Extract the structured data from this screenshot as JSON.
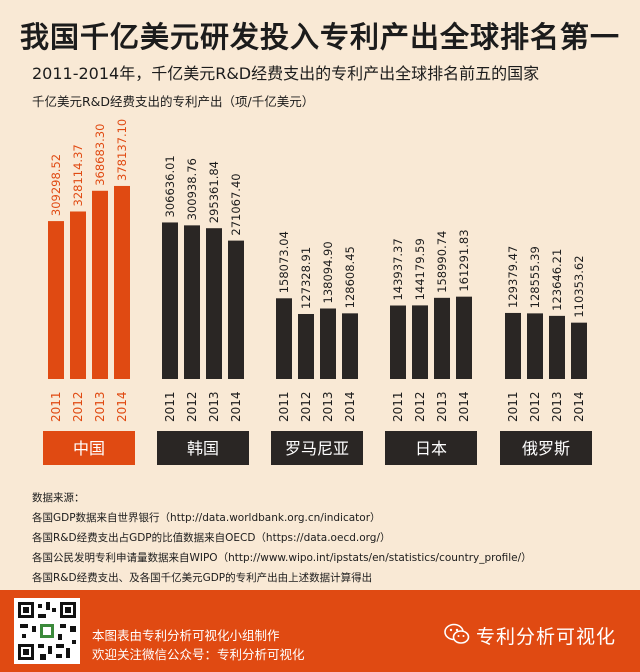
{
  "title": "我国千亿美元研发投入专利产出全球排名第一",
  "subtitle": "2011-2014年，千亿美元R&D经费支出的专利产出全球排名前五的国家",
  "unit_label": "千亿美元R&D经费支出的专利产出（项/千亿美元）",
  "chart_data": {
    "type": "bar",
    "title": "我国千亿美元研发投入专利产出全球排名第一",
    "subtitle": "2011-2014年，千亿美元R&D经费支出的专利产出全球排名前五的国家",
    "ylabel": "千亿美元R&D经费支出的专利产出（项/千亿美元）",
    "years": [
      "2011",
      "2012",
      "2013",
      "2014"
    ],
    "groups": [
      {
        "name": "中国",
        "color": "#e04a12",
        "values": [
          309298.52,
          328114.37,
          368683.3,
          378137.1
        ],
        "labels": [
          "309298.52",
          "328114.37",
          "368683.30",
          "378137.10"
        ]
      },
      {
        "name": "韩国",
        "color": "#2a2624",
        "values": [
          306636.01,
          300938.76,
          295361.84,
          271067.4
        ],
        "labels": [
          "306636.01",
          "300938.76",
          "295361.84",
          "271067.40"
        ]
      },
      {
        "name": "罗马尼亚",
        "color": "#2a2624",
        "values": [
          158073.04,
          127328.91,
          138094.9,
          128608.45
        ],
        "labels": [
          "158073.04",
          "127328.91",
          "138094.90",
          "128608.45"
        ]
      },
      {
        "name": "日本",
        "color": "#2a2624",
        "values": [
          143937.37,
          144179.59,
          158990.74,
          161291.83
        ],
        "labels": [
          "143937.37",
          "144179.59",
          "158990.74",
          "161291.83"
        ]
      },
      {
        "name": "俄罗斯",
        "color": "#2a2624",
        "values": [
          129379.47,
          128555.39,
          123646.21,
          110353.62
        ],
        "labels": [
          "129379.47",
          "128555.39",
          "123646.21",
          "110353.62"
        ]
      }
    ],
    "ylim": [
      0,
      380000
    ],
    "grid": false,
    "legend": "none"
  },
  "colors": {
    "accent": "#e04a12",
    "dark": "#2a2624",
    "background": "#f9e9d5"
  },
  "sources": {
    "heading": "数据来源：",
    "lines": [
      "各国GDP数据来自世界银行（http://data.worldbank.org.cn/indicator）",
      "各国R&D经费支出占GDP的比值数据来自OECD（https://data.oecd.org/）",
      "各国公民发明专利申请量数据来自WIPO（http://www.wipo.int/ipstats/en/statistics/country_profile/）",
      "各国R&D经费支出、及各国千亿美元GDP的专利产出由上述数据计算得出"
    ]
  },
  "footer": {
    "line1": "本图表由专利分析可视化小组制作",
    "line2": "欢迎关注微信公众号：专利分析可视化",
    "brand": "专利分析可视化",
    "qr_icon": "qr-code-icon",
    "wechat_icon": "wechat-icon"
  }
}
